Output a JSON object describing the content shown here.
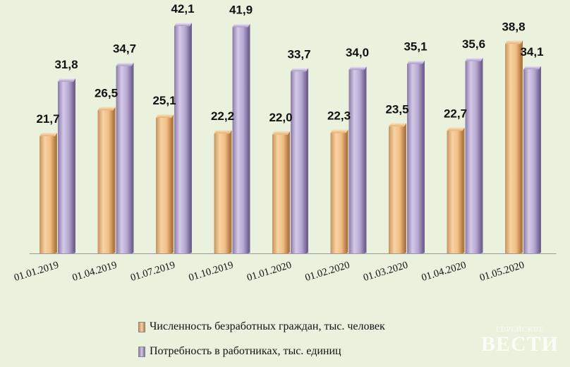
{
  "chart_data": {
    "type": "bar",
    "categories": [
      "01.01.2019",
      "01.04.2019",
      "01.07.2019",
      "01.10.2019",
      "01.01.2020",
      "01.02.2020",
      "01.03.2020",
      "01.04.2020",
      "01.05.2020"
    ],
    "series": [
      {
        "name": "Численность безработных граждан, тыс. человек",
        "values": [
          21.7,
          26.5,
          25.1,
          22.2,
          22.0,
          22.3,
          23.5,
          22.7,
          38.8
        ],
        "labels": [
          "21,7",
          "26,5",
          "25,1",
          "22,2",
          "22,0",
          "22,3",
          "23,5",
          "22,7",
          "38,8"
        ],
        "color": "#f2c48e"
      },
      {
        "name": "Потребность в работниках, тыс. единиц",
        "values": [
          31.8,
          34.7,
          42.1,
          41.9,
          33.7,
          34.0,
          35.1,
          35.6,
          34.1
        ],
        "labels": [
          "31,8",
          "34,7",
          "42,1",
          "41,9",
          "33,7",
          "34,0",
          "35,1",
          "35,6",
          "34,1"
        ],
        "color": "#b5a6cf"
      }
    ],
    "ylim": [
      0,
      42.5
    ],
    "grid": false,
    "legend_position": "bottom",
    "bar_style": "3d"
  },
  "watermark": {
    "top": "ЕВРЕЙСКИЕ",
    "main": "ВЕСТИ"
  }
}
